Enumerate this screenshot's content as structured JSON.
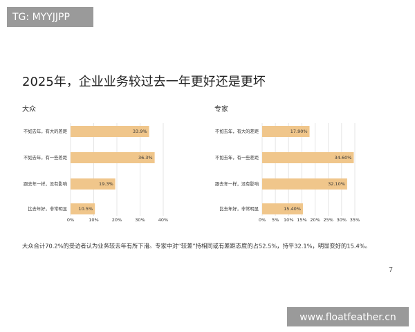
{
  "watermark": "TG: MYYJJPP",
  "title": "2025年，企业业务较过去一年更好还是更坏",
  "chart_data": [
    {
      "type": "hbar",
      "title": "大众",
      "color": "#f0c68b",
      "grid": true,
      "categories": [
        "不如去年，有大的差距",
        "不如去年，有一些差距",
        "跟去年一样，没有影响",
        "比去年好，非常明显"
      ],
      "values": [
        33.9,
        36.3,
        19.3,
        10.5
      ],
      "value_labels": [
        "33.9%",
        "36.3%",
        "19.3%",
        "10.5%"
      ],
      "xlim": [
        0,
        40
      ],
      "xticks": [
        {
          "value": 0,
          "label": "0%"
        },
        {
          "value": 10,
          "label": "10%"
        },
        {
          "value": 20,
          "label": "20%"
        },
        {
          "value": 30,
          "label": "30%"
        },
        {
          "value": 40,
          "label": "40%"
        }
      ]
    },
    {
      "type": "hbar",
      "title": "专家",
      "color": "#f0c68b",
      "grid": true,
      "categories": [
        "不如去年，有大的差距",
        "不如去年，有一些差距",
        "跟去年一样，没有影响",
        "比去年好，非常明显"
      ],
      "values": [
        17.9,
        34.6,
        32.1,
        15.4
      ],
      "value_labels": [
        "17.90%",
        "34.60%",
        "32.10%",
        "15.40%"
      ],
      "xlim": [
        0,
        35
      ],
      "xticks": [
        {
          "value": 0,
          "label": "0%"
        },
        {
          "value": 5,
          "label": "5%"
        },
        {
          "value": 10,
          "label": "10%"
        },
        {
          "value": 15,
          "label": "15%"
        },
        {
          "value": 20,
          "label": "20%"
        },
        {
          "value": 25,
          "label": "25%"
        },
        {
          "value": 30,
          "label": "30%"
        },
        {
          "value": 35,
          "label": "35%"
        }
      ]
    }
  ],
  "footnote": "大众合计70.2%的受访者认为业务较去年有所下滑。专家中对“较差”持相同或有差距态度的占52.5%，持平32.1%，明显变好的15.4%。",
  "page_number": "7",
  "site": "www.floatfeather.cn"
}
